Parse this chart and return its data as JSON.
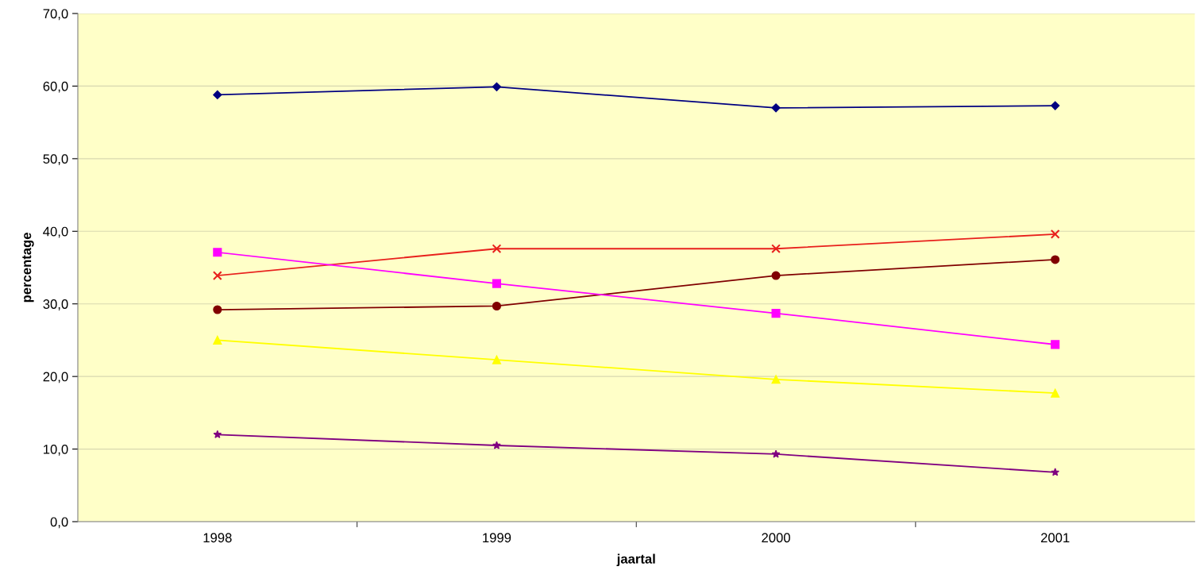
{
  "chart_data": {
    "type": "line",
    "xlabel": "jaartal",
    "ylabel": "percentage",
    "categories": [
      "1998",
      "1999",
      "2000",
      "2001"
    ],
    "series": [
      {
        "color": "#000080",
        "marker": "diamond",
        "values": [
          58.8,
          59.9,
          57.0,
          57.3
        ]
      },
      {
        "color": "#e8201c",
        "marker": "cross",
        "values": [
          33.9,
          37.6,
          37.6,
          39.6
        ]
      },
      {
        "color": "#800000",
        "marker": "circle",
        "values": [
          29.2,
          29.7,
          33.9,
          36.1
        ]
      },
      {
        "color": "#ff00ff",
        "marker": "square",
        "values": [
          37.1,
          32.8,
          28.7,
          24.4
        ]
      },
      {
        "color": "#ffff00",
        "marker": "triangle",
        "values": [
          25.0,
          22.3,
          19.6,
          17.7
        ]
      },
      {
        "color": "#800080",
        "marker": "star",
        "values": [
          12.0,
          10.5,
          9.3,
          6.8
        ]
      }
    ],
    "ylim": [
      0,
      70
    ],
    "yticks": [
      {
        "value": 0,
        "label": "0,0"
      },
      {
        "value": 10,
        "label": "10,0"
      },
      {
        "value": 20,
        "label": "20,0"
      },
      {
        "value": 30,
        "label": "30,0"
      },
      {
        "value": 40,
        "label": "40,0"
      },
      {
        "value": 50,
        "label": "50,0"
      },
      {
        "value": 60,
        "label": "60,0"
      },
      {
        "value": 70,
        "label": "70,0"
      }
    ],
    "grid": "y",
    "legend": false,
    "line_style": "solid"
  }
}
